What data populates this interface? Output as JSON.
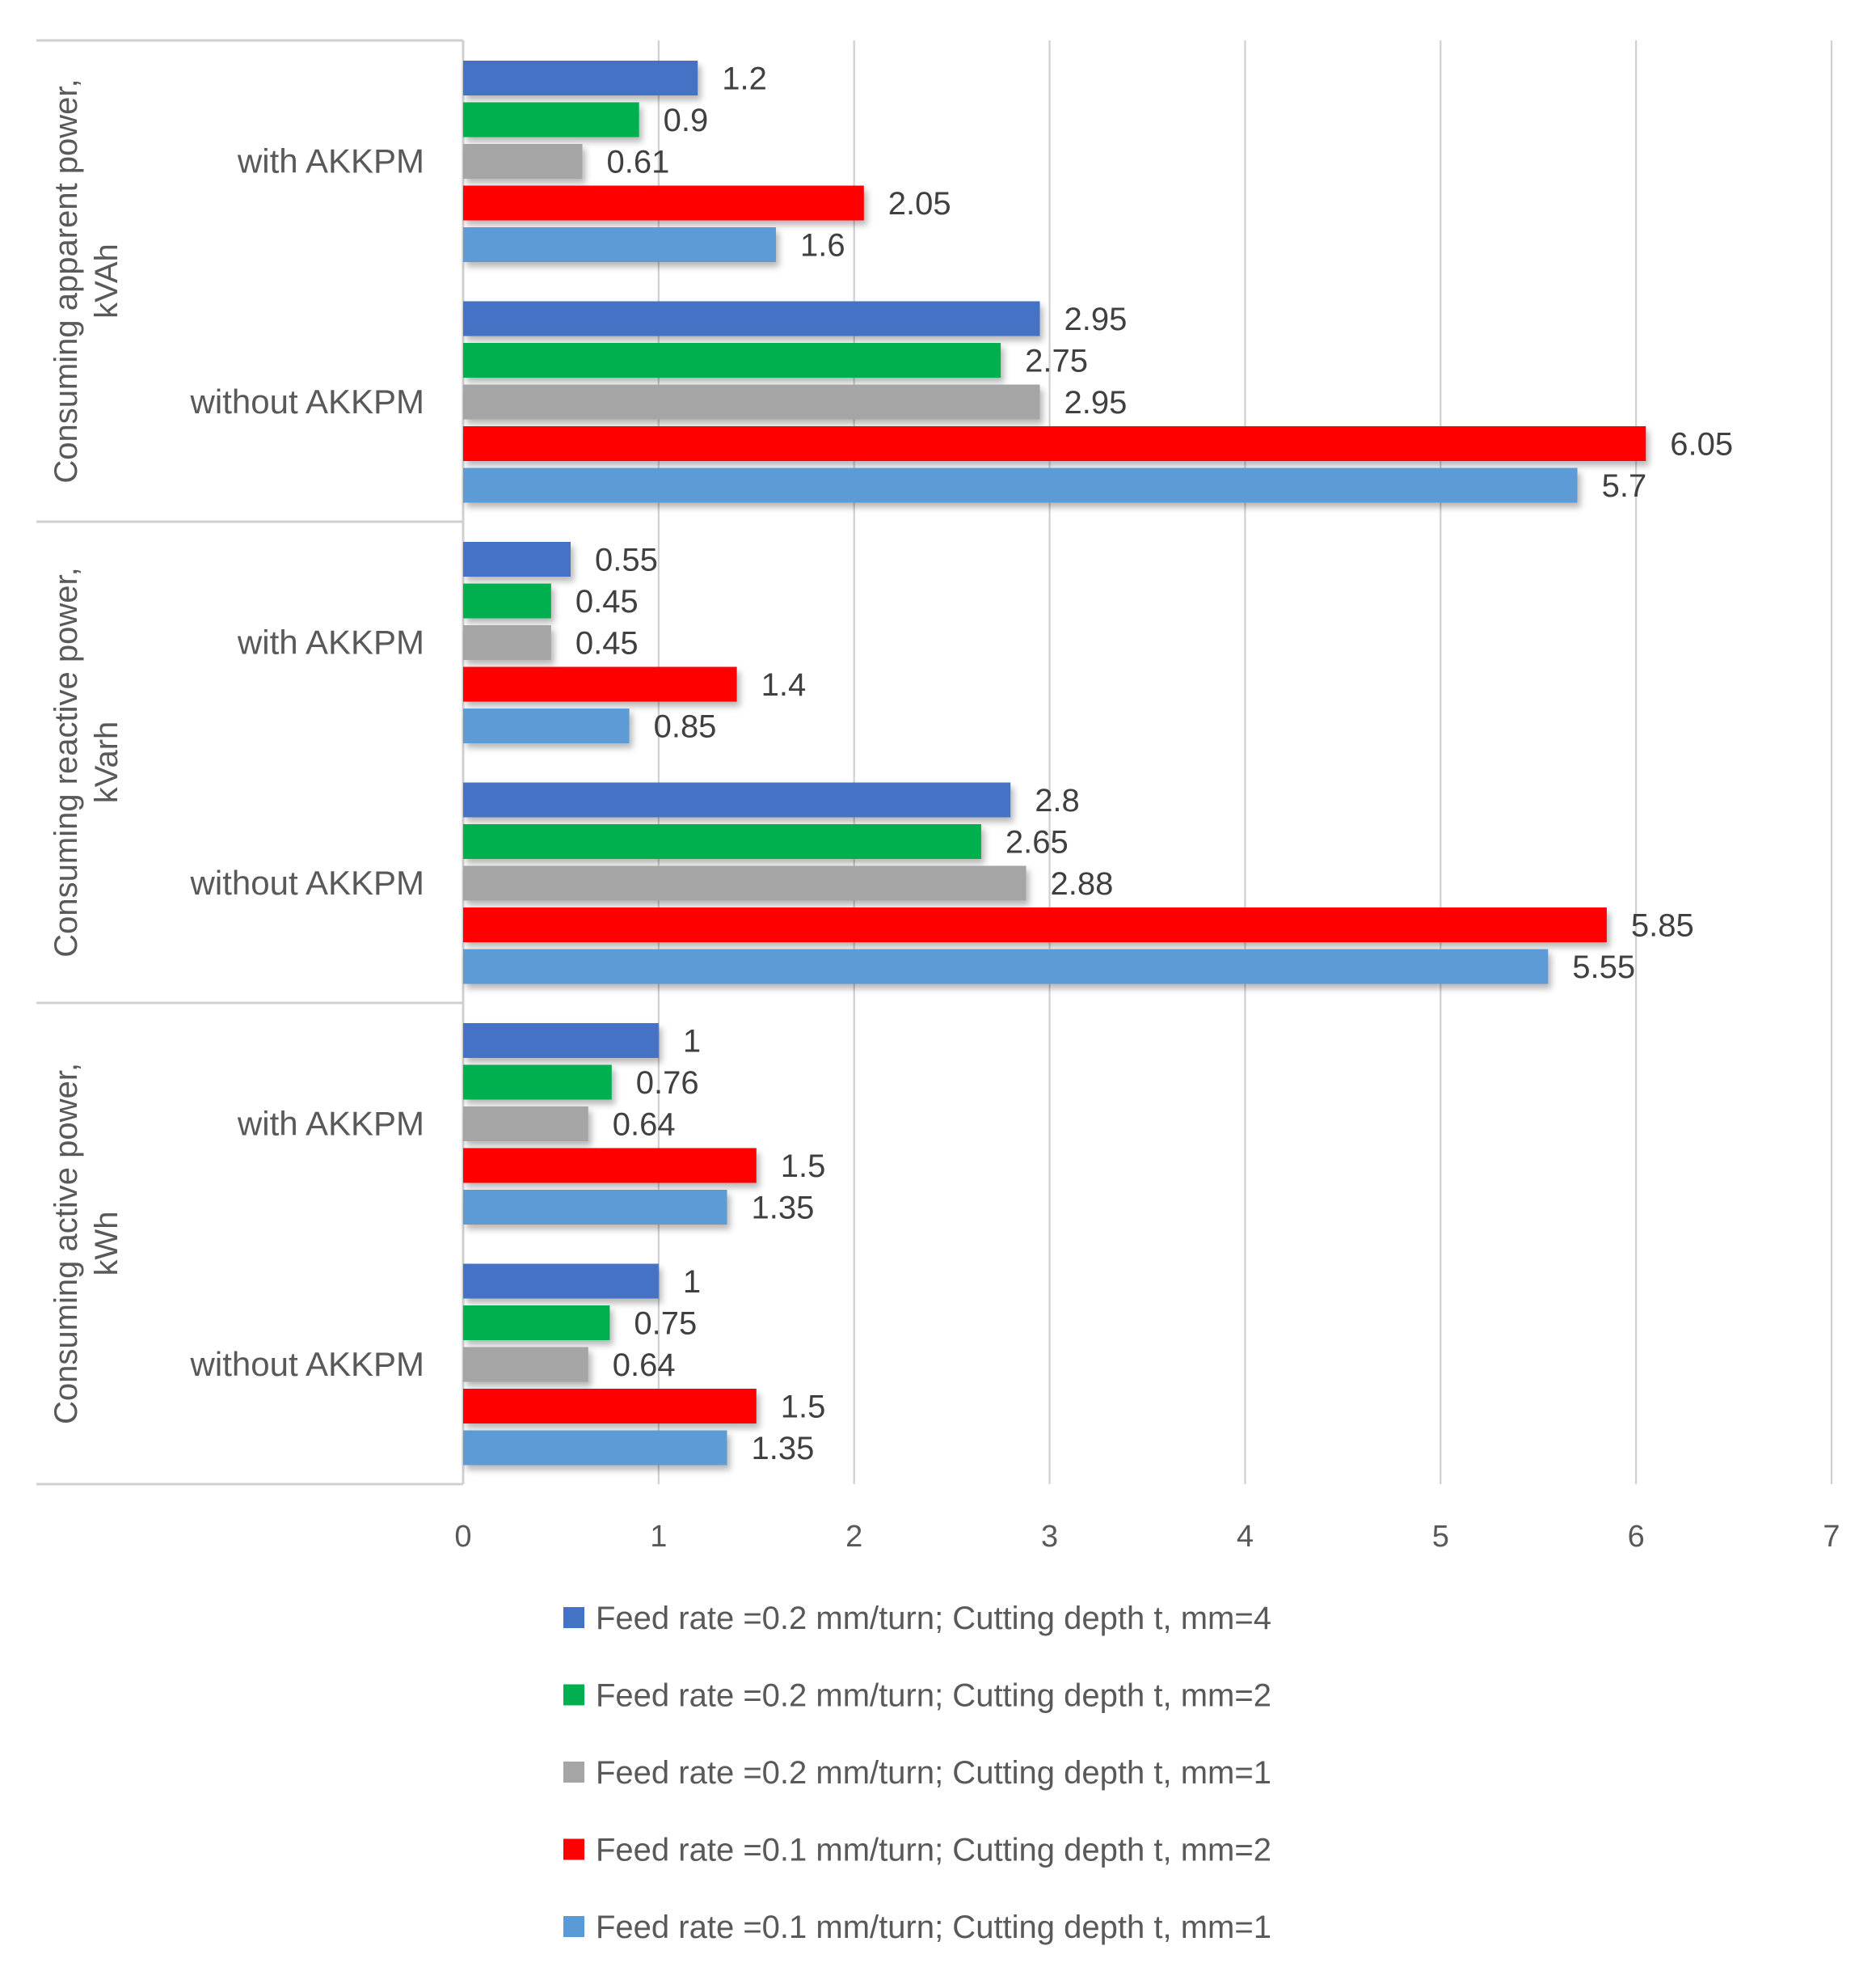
{
  "chart_data": {
    "type": "bar",
    "orientation": "horizontal",
    "x_axis": {
      "min": 0,
      "max": 7,
      "ticks": [
        "0",
        "1",
        "2",
        "3",
        "4",
        "5",
        "6",
        "7"
      ]
    },
    "groups": [
      {
        "title_lines": [
          "Consuming apparent power,",
          "kVAh"
        ],
        "categories": [
          "with AKKPM",
          "without AKKPM"
        ]
      },
      {
        "title_lines": [
          "Consuming reactive power,",
          "kVarh"
        ],
        "categories": [
          "with AKKPM",
          "without AKKPM"
        ]
      },
      {
        "title_lines": [
          "Consuming active power,",
          "kWh"
        ],
        "categories": [
          "with AKKPM",
          "without AKKPM"
        ]
      }
    ],
    "series": [
      {
        "name": "Feed rate =0.2 mm/turn;  Cutting depth t, mm=4",
        "color": "#4472C4",
        "values": [
          1.2,
          2.95,
          0.55,
          2.8,
          1,
          1
        ],
        "labels": [
          "1.2",
          "2.95",
          "0.55",
          "2.8",
          "1",
          "1"
        ]
      },
      {
        "name": "Feed rate =0.2 mm/turn;  Cutting depth t, mm=2",
        "color": "#00B050",
        "values": [
          0.9,
          2.75,
          0.45,
          2.65,
          0.76,
          0.75
        ],
        "labels": [
          "0.9",
          "2.75",
          "0.45",
          "2.65",
          "0.76",
          "0.75"
        ]
      },
      {
        "name": "Feed rate =0.2 mm/turn;  Cutting depth t, mm=1",
        "color": "#A5A5A5",
        "values": [
          0.61,
          2.95,
          0.45,
          2.88,
          0.64,
          0.64
        ],
        "labels": [
          "0.61",
          "2.95",
          "0.45",
          "2.88",
          "0.64",
          "0.64"
        ]
      },
      {
        "name": "Feed rate =0.1 mm/turn;  Cutting depth t, mm=2",
        "color": "#FF0000",
        "values": [
          2.05,
          6.05,
          1.4,
          5.85,
          1.5,
          1.5
        ],
        "labels": [
          "2.05",
          "6.05",
          "1.4",
          "5.85",
          "1.5",
          "1.5"
        ]
      },
      {
        "name": "Feed rate =0.1 mm/turn;  Cutting depth t, mm=1",
        "color": "#5B9BD5",
        "values": [
          1.6,
          5.7,
          0.85,
          5.55,
          1.35,
          1.35
        ],
        "labels": [
          "1.6",
          "5.7",
          "0.85",
          "5.55",
          "1.35",
          "1.35"
        ]
      }
    ]
  }
}
